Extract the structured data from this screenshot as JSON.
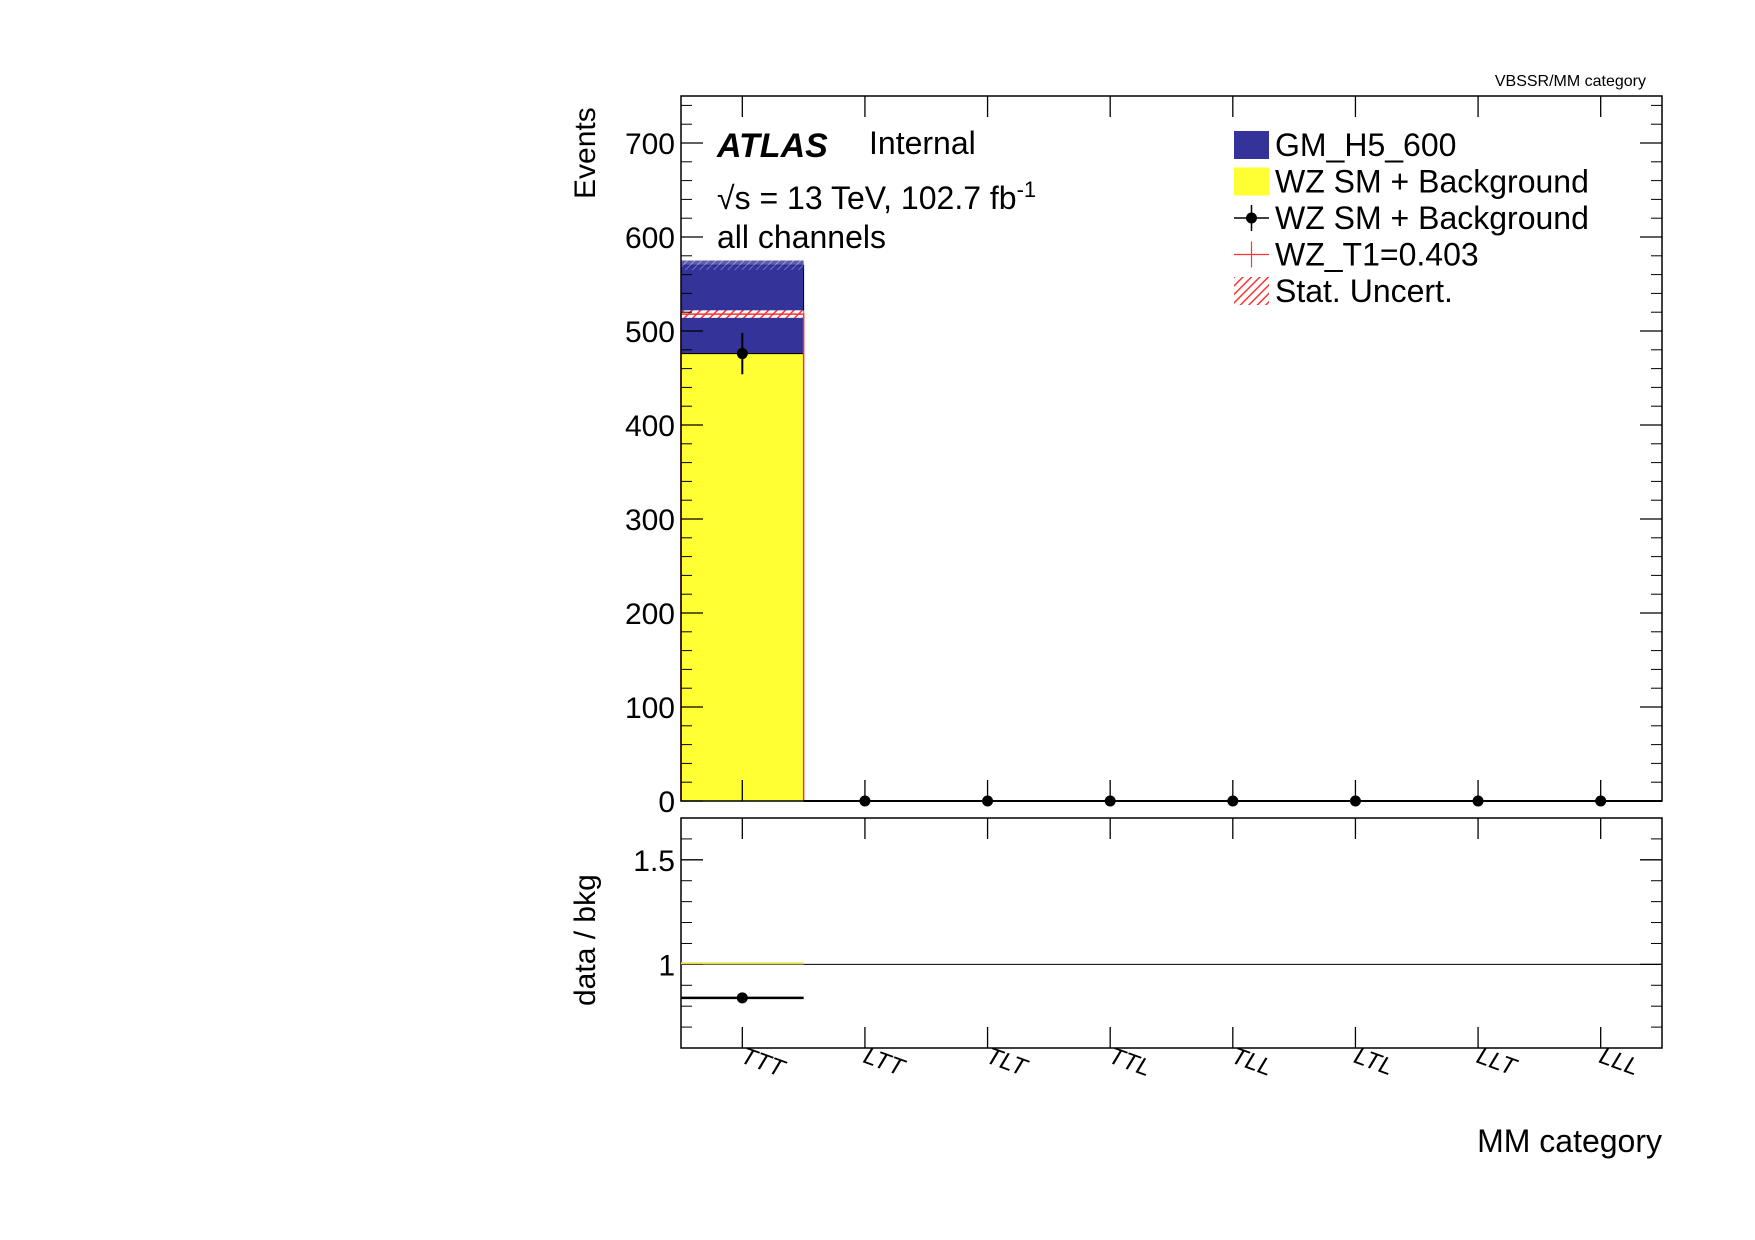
{
  "corner_label": "VBSSR/MM category",
  "atlas": {
    "label": "ATLAS",
    "status": "Internal",
    "energy_prefix": "√s = 13 TeV, 102.7 fb",
    "energy_superscript": "-1",
    "channel": "all channels"
  },
  "chart_data": [
    {
      "type": "bar",
      "panel": "main",
      "ylabel": "Events",
      "xlabel": "MM category",
      "ylim": [
        0,
        750
      ],
      "yticks": [
        0,
        100,
        200,
        300,
        400,
        500,
        600,
        700
      ],
      "categories": [
        "TTT",
        "LTT",
        "TLT",
        "TTL",
        "TLL",
        "LTL",
        "LLT",
        "LLL"
      ],
      "stacked": true,
      "series": [
        {
          "name": "WZ SM + Background",
          "kind": "stack",
          "color": "#ffff33",
          "values": [
            476,
            0,
            0,
            0,
            0,
            0,
            0,
            0
          ]
        },
        {
          "name": "GM_H5_600",
          "kind": "stack",
          "color": "#333399",
          "values": [
            94,
            0,
            0,
            0,
            0,
            0,
            0,
            0
          ]
        },
        {
          "name": "WZ SM + Background",
          "kind": "points",
          "color": "#000000",
          "values": [
            476,
            0,
            0,
            0,
            0,
            0,
            0,
            0
          ],
          "errors": [
            22,
            0,
            0,
            0,
            0,
            0,
            0,
            0
          ]
        },
        {
          "name": "WZ_T1=0.403",
          "kind": "line",
          "color": "#ff3333",
          "values": [
            518,
            0,
            0,
            0,
            0,
            0,
            0,
            0
          ]
        }
      ],
      "stat_uncert": {
        "name": "Stat. Uncert.",
        "color": "#ff3333",
        "half_width": [
          4,
          0,
          0,
          0,
          0,
          0,
          0,
          0
        ]
      },
      "total_uncert_color": "#6666cc",
      "legend_position": "top-right"
    },
    {
      "type": "scatter",
      "panel": "ratio",
      "ylabel": "data / bkg",
      "ylim": [
        0.6,
        1.7
      ],
      "yticks": [
        1,
        1.5
      ],
      "ytick_labels": [
        "1",
        "1.5"
      ],
      "reference_line": 1,
      "categories": [
        "TTT",
        "LTT",
        "TLT",
        "TTL",
        "TLL",
        "LTL",
        "LLT",
        "LLL"
      ],
      "series": [
        {
          "name": "data / bkg",
          "values": [
            0.84,
            null,
            null,
            null,
            null,
            null,
            null,
            null
          ]
        }
      ]
    }
  ],
  "legend": [
    {
      "label": "GM_H5_600",
      "style": "fill",
      "color": "#333399"
    },
    {
      "label": "WZ SM + Background",
      "style": "fill",
      "color": "#ffff33"
    },
    {
      "label": "WZ SM + Background",
      "style": "marker",
      "color": "#000000"
    },
    {
      "label": "WZ_T1=0.403",
      "style": "cross",
      "color": "#ff3333"
    },
    {
      "label": "Stat. Uncert.",
      "style": "hatch",
      "color": "#ff3333"
    }
  ]
}
